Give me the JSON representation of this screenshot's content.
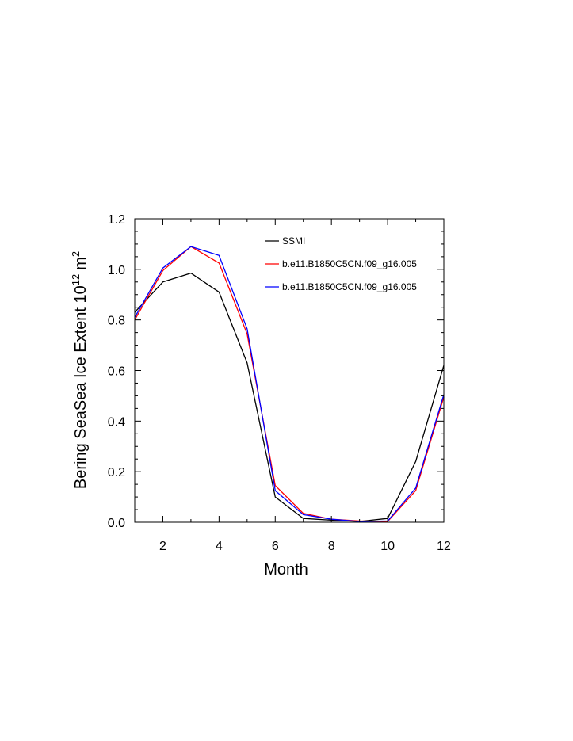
{
  "chart_data": {
    "type": "line",
    "xlabel": "Month",
    "ylabel": "Bering SeaSea Ice Extent 10",
    "ylabel_sup": "12",
    "ylabel_unit": "m",
    "ylabel_unit_sup": "2",
    "xlim": [
      1,
      12
    ],
    "ylim": [
      0,
      1.2
    ],
    "x_ticks": [
      2,
      4,
      6,
      8,
      10,
      12
    ],
    "y_ticks": [
      0.0,
      0.2,
      0.4,
      0.6,
      0.8,
      1.0,
      1.2
    ],
    "x_tick_labels": [
      "2",
      "4",
      "6",
      "8",
      "10",
      "12"
    ],
    "y_tick_labels": [
      "0.0",
      "0.2",
      "0.4",
      "0.6",
      "0.8",
      "1.0",
      "1.2"
    ],
    "grid": false,
    "legend_position": "top-right",
    "x": [
      1,
      2,
      3,
      4,
      5,
      6,
      7,
      8,
      9,
      10,
      11,
      12
    ],
    "series": [
      {
        "name": "SSMI",
        "color": "#000000",
        "values": [
          0.83,
          0.95,
          0.985,
          0.91,
          0.63,
          0.1,
          0.015,
          0.008,
          0.003,
          0.015,
          0.24,
          0.62
        ]
      },
      {
        "name": "b.e11.B1850C5CN.f09_g16.005",
        "color": "#ff0000",
        "values": [
          0.8,
          0.995,
          1.09,
          1.025,
          0.745,
          0.145,
          0.035,
          0.012,
          0.005,
          0.003,
          0.125,
          0.495
        ]
      },
      {
        "name": "b.e11.B1850C5CN.f09_g16.005",
        "color": "#0000ff",
        "values": [
          0.81,
          1.005,
          1.09,
          1.055,
          0.765,
          0.125,
          0.03,
          0.012,
          0.003,
          0.005,
          0.135,
          0.505
        ]
      }
    ]
  }
}
